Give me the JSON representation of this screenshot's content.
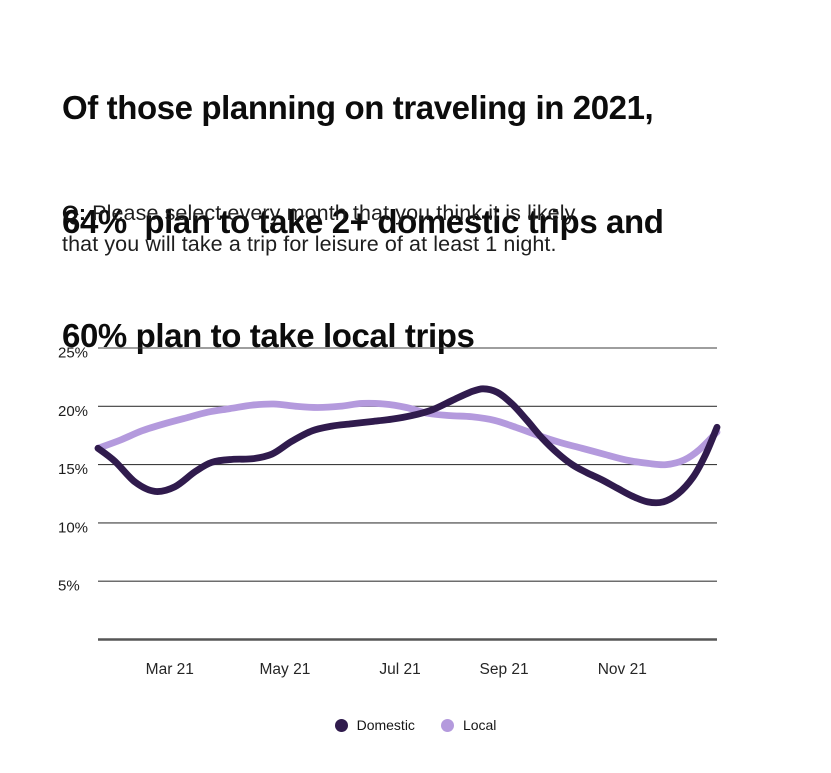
{
  "header": {
    "title_lines": [
      "Of those planning on traveling in 2021,",
      "64%  plan to take 2+ domestic trips and",
      "60% plan to take local trips"
    ],
    "question": {
      "prefix": "Q:",
      "line1_rest": " Please select every month that you think it is likely",
      "line2": "that you will take a trip for leisure of at least 1 night."
    }
  },
  "legend": {
    "items": [
      {
        "label": "Domestic",
        "color": "#301b4d"
      },
      {
        "label": "Local",
        "color": "#b49add"
      }
    ]
  },
  "chart_data": {
    "type": "line",
    "title": "",
    "xlabel": "",
    "ylabel": "",
    "grid": true,
    "legend_position": "bottom",
    "x_axis": {
      "tick_labels": [
        "Mar 21",
        "May 21",
        "Jul 21",
        "Sep 21",
        "Nov 21"
      ],
      "tick_positions": [
        0.116,
        0.302,
        0.488,
        0.656,
        0.847
      ],
      "span": "Jan 2021 - Dec 2021"
    },
    "y_axis": {
      "ticks": [
        25,
        20,
        15,
        10,
        5
      ],
      "tick_labels": [
        "25%",
        "20%",
        "15%",
        "10%",
        "5%"
      ],
      "range": [
        0,
        25
      ],
      "unit": "%"
    },
    "series": [
      {
        "name": "Domestic",
        "color": "#301b4d",
        "points": [
          [
            0,
            16.4
          ],
          [
            0.027,
            15.3
          ],
          [
            0.06,
            13.5
          ],
          [
            0.092,
            12.7
          ],
          [
            0.124,
            13.1
          ],
          [
            0.157,
            14.4
          ],
          [
            0.184,
            15.2
          ],
          [
            0.217,
            15.45
          ],
          [
            0.249,
            15.5
          ],
          [
            0.281,
            15.9
          ],
          [
            0.313,
            17.0
          ],
          [
            0.346,
            17.9
          ],
          [
            0.378,
            18.3
          ],
          [
            0.41,
            18.5
          ],
          [
            0.443,
            18.7
          ],
          [
            0.475,
            18.9
          ],
          [
            0.507,
            19.2
          ],
          [
            0.54,
            19.7
          ],
          [
            0.572,
            20.5
          ],
          [
            0.601,
            21.2
          ],
          [
            0.622,
            21.5
          ],
          [
            0.645,
            21.2
          ],
          [
            0.669,
            20.2
          ],
          [
            0.693,
            18.8
          ],
          [
            0.717,
            17.3
          ],
          [
            0.742,
            16.0
          ],
          [
            0.766,
            15.0
          ],
          [
            0.79,
            14.3
          ],
          [
            0.814,
            13.7
          ],
          [
            0.838,
            13.0
          ],
          [
            0.863,
            12.3
          ],
          [
            0.888,
            11.8
          ],
          [
            0.913,
            11.8
          ],
          [
            0.937,
            12.5
          ],
          [
            0.961,
            13.9
          ],
          [
            0.981,
            15.8
          ],
          [
            1,
            18.2
          ]
        ]
      },
      {
        "name": "Local",
        "color": "#b49add",
        "points": [
          [
            0,
            16.4
          ],
          [
            0.036,
            17.1
          ],
          [
            0.071,
            17.9
          ],
          [
            0.107,
            18.5
          ],
          [
            0.142,
            19.0
          ],
          [
            0.178,
            19.5
          ],
          [
            0.213,
            19.8
          ],
          [
            0.249,
            20.1
          ],
          [
            0.284,
            20.2
          ],
          [
            0.32,
            20.0
          ],
          [
            0.355,
            19.9
          ],
          [
            0.391,
            20.0
          ],
          [
            0.427,
            20.25
          ],
          [
            0.462,
            20.2
          ],
          [
            0.498,
            19.9
          ],
          [
            0.533,
            19.4
          ],
          [
            0.569,
            19.2
          ],
          [
            0.604,
            19.1
          ],
          [
            0.64,
            18.8
          ],
          [
            0.675,
            18.2
          ],
          [
            0.711,
            17.5
          ],
          [
            0.746,
            16.9
          ],
          [
            0.782,
            16.4
          ],
          [
            0.817,
            15.9
          ],
          [
            0.853,
            15.4
          ],
          [
            0.889,
            15.1
          ],
          [
            0.918,
            15.0
          ],
          [
            0.947,
            15.4
          ],
          [
            0.972,
            16.3
          ],
          [
            1,
            17.8
          ]
        ]
      }
    ]
  }
}
